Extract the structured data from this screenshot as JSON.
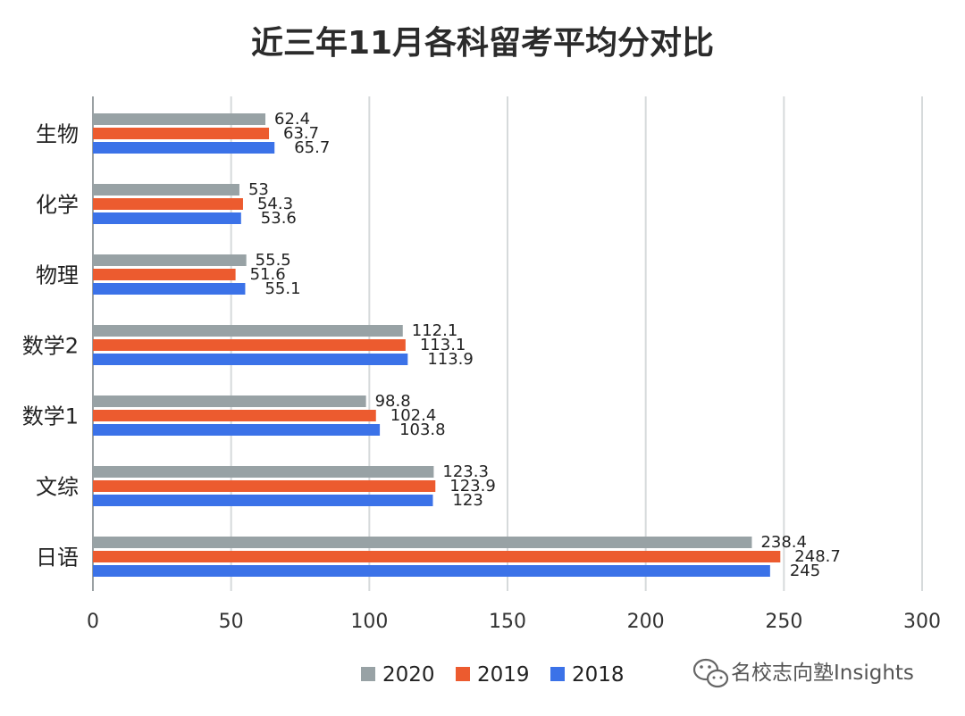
{
  "colors": {
    "2020": "#98a2a5",
    "2019": "#ec5b2f",
    "2018": "#3b72e8",
    "grid": "#d6dadb",
    "axis": "#9aa0a3"
  },
  "chart_data": {
    "type": "bar",
    "orientation": "horizontal",
    "title": "近三年11月各科留考平均分对比",
    "categories": [
      "生物",
      "化学",
      "物理",
      "数学2",
      "数学1",
      "文综",
      "日语"
    ],
    "series": [
      {
        "name": "2020",
        "values": [
          62.4,
          53,
          55.5,
          112.1,
          98.8,
          123.3,
          238.4
        ]
      },
      {
        "name": "2019",
        "values": [
          63.7,
          54.3,
          51.6,
          113.1,
          102.4,
          123.9,
          248.7
        ]
      },
      {
        "name": "2018",
        "values": [
          65.7,
          53.6,
          55.1,
          113.9,
          103.8,
          123,
          245
        ]
      }
    ],
    "xlim": [
      0,
      300
    ],
    "xticks": [
      0,
      50,
      100,
      150,
      200,
      250,
      300
    ],
    "grid": true,
    "legend_position": "bottom"
  },
  "branding": {
    "icon": "wechat-icon",
    "text": "名校志向塾Insights"
  }
}
